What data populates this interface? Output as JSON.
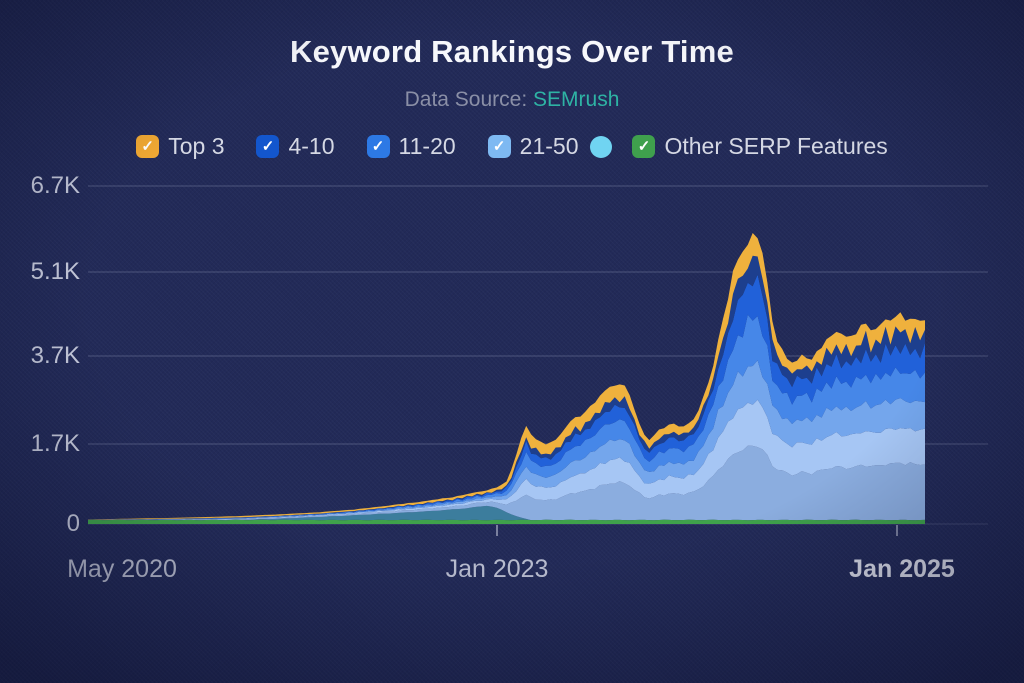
{
  "title": "Keyword Rankings Over Time",
  "subtitle": {
    "label": "Data Source:",
    "value": "SEMrush"
  },
  "colors": {
    "background": "#222a58",
    "title_text": "#f7f8fc",
    "subtitle_label": "#8a8fa6",
    "subtitle_value": "#2eb3a4",
    "axis_text": "#c3c7d9",
    "gridline": "rgba(205,212,240,0.17)"
  },
  "legend": [
    {
      "key": "top-3",
      "label": "Top 3",
      "swatch": "#f0a833",
      "type": "checkbox"
    },
    {
      "key": "4-10",
      "label": "4-10",
      "swatch": "#1356cd",
      "type": "checkbox"
    },
    {
      "key": "11-20",
      "label": "11-20",
      "swatch": "#2d79e5",
      "type": "checkbox"
    },
    {
      "key": "21-50",
      "label": "21-50",
      "swatch": "#7eb9f2",
      "type": "checkbox"
    },
    {
      "key": "unlabeled-dot-series",
      "label": "",
      "swatch": "#70d4f2",
      "type": "dot"
    },
    {
      "key": "other-serp-features",
      "label": "Other SERP Features",
      "swatch": "#3fa04d",
      "type": "checkbox"
    }
  ],
  "chart_data": {
    "type": "area",
    "stacked": true,
    "title": "Keyword Rankings Over Time",
    "grid": true,
    "legend_position": "top",
    "x_axis": {
      "labels": [
        "May 2020",
        "Jan 2023",
        "Jan 2025"
      ],
      "range": [
        "May 2020",
        "Jan 2025"
      ]
    },
    "y_axis": {
      "tick_labels": [
        "0",
        "1.7K",
        "3.7K",
        "5.1K",
        "6.7K"
      ],
      "tick_values": [
        0,
        1700,
        3700,
        5100,
        6700
      ]
    },
    "total_top_edge_series_note": "top of orange 'Top 3' band = total ranked keywords; t = fraction of x-axis May 2020 -> Jan 2025",
    "total_series": [
      [
        0.0,
        95
      ],
      [
        0.038,
        110
      ],
      [
        0.086,
        125
      ],
      [
        0.134,
        145
      ],
      [
        0.182,
        170
      ],
      [
        0.229,
        205
      ],
      [
        0.277,
        250
      ],
      [
        0.325,
        320
      ],
      [
        0.373,
        420
      ],
      [
        0.409,
        500
      ],
      [
        0.438,
        580
      ],
      [
        0.466,
        680
      ],
      [
        0.486,
        760
      ],
      [
        0.501,
        900
      ],
      [
        0.513,
        1550
      ],
      [
        0.522,
        2150
      ],
      [
        0.532,
        1850
      ],
      [
        0.544,
        1680
      ],
      [
        0.559,
        1800
      ],
      [
        0.576,
        2200
      ],
      [
        0.591,
        2380
      ],
      [
        0.607,
        2700
      ],
      [
        0.621,
        2950
      ],
      [
        0.633,
        3080
      ],
      [
        0.645,
        3000
      ],
      [
        0.656,
        2250
      ],
      [
        0.669,
        1750
      ],
      [
        0.683,
        2050
      ],
      [
        0.698,
        2150
      ],
      [
        0.712,
        2080
      ],
      [
        0.727,
        2350
      ],
      [
        0.741,
        3050
      ],
      [
        0.758,
        4300
      ],
      [
        0.773,
        5250
      ],
      [
        0.787,
        5550
      ],
      [
        0.797,
        5880
      ],
      [
        0.807,
        5500
      ],
      [
        0.815,
        4450
      ],
      [
        0.824,
        3900
      ],
      [
        0.839,
        3550
      ],
      [
        0.853,
        3700
      ],
      [
        0.866,
        3600
      ],
      [
        0.882,
        4000
      ],
      [
        0.896,
        4120
      ],
      [
        0.911,
        3950
      ],
      [
        0.925,
        4280
      ],
      [
        0.94,
        4120
      ],
      [
        0.956,
        4300
      ],
      [
        0.97,
        4420
      ],
      [
        0.985,
        4260
      ],
      [
        1.0,
        4300
      ]
    ],
    "baseline_series": {
      "name": "Other SERP Features",
      "color": "#3fa24b",
      "constant_value": 85
    },
    "teal_band_series": {
      "name": "(unlabeled teal band, ends early 2023)",
      "color": "#3c7d9d",
      "points": [
        [
          0.0,
          0
        ],
        [
          0.18,
          0
        ],
        [
          0.23,
          30
        ],
        [
          0.3,
          85
        ],
        [
          0.36,
          140
        ],
        [
          0.41,
          190
        ],
        [
          0.45,
          245
        ],
        [
          0.47,
          290
        ],
        [
          0.478,
          305
        ],
        [
          0.49,
          250
        ],
        [
          0.502,
          150
        ],
        [
          0.515,
          60
        ],
        [
          0.528,
          0
        ],
        [
          1.0,
          0
        ]
      ]
    },
    "top3_share": {
      "at_start": 0.5,
      "at_end": 0.06,
      "curve_power": 2.2
    },
    "blue_band_weights": {
      "pale": 0.3,
      "lighter": 0.19,
      "light": 0.16,
      "medium": 0.16,
      "royal": 0.12,
      "navy": 0.07
    },
    "layer_colors": {
      "green": "#3fa24b",
      "teal": "#3c7d9d",
      "pale": "#8baddf",
      "lighter": "#a6c6f4",
      "light": "#74a6ec",
      "medium": "#4687e8",
      "royal": "#2161d9",
      "navy": "#1d3f8e",
      "top3": "#efb13d"
    },
    "series_legend_mapping": [
      {
        "legend_label": "Top 3",
        "render_layers": [
          "top3"
        ]
      },
      {
        "legend_label": "4-10",
        "render_layers": [
          "navy",
          "royal"
        ]
      },
      {
        "legend_label": "11-20",
        "render_layers": [
          "medium"
        ]
      },
      {
        "legend_label": "21-50",
        "render_layers": [
          "light"
        ]
      },
      {
        "legend_label": "",
        "render_layers": [
          "lighter",
          "pale",
          "teal"
        ]
      },
      {
        "legend_label": "Other SERP Features",
        "render_layers": [
          "green"
        ]
      }
    ]
  }
}
